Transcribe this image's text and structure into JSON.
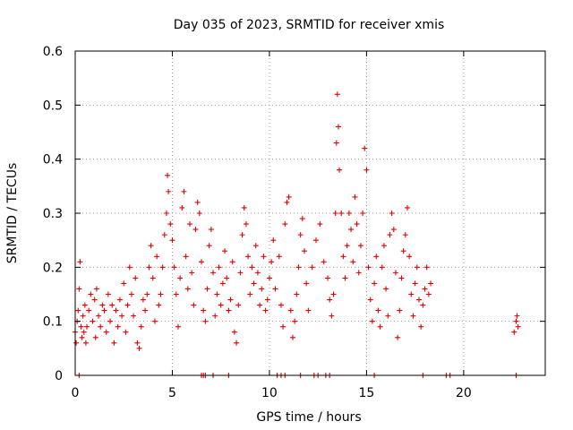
{
  "chart_data": {
    "type": "scatter",
    "title": "Day 035 of 2023, SRMTID for receiver xmis",
    "xlabel": "GPS time / hours",
    "ylabel": "SRMTID / TECUs",
    "xlim": [
      0,
      24.2
    ],
    "ylim": [
      0,
      0.6
    ],
    "xticks": [
      0,
      5,
      10,
      15,
      20
    ],
    "xtick_labels": [
      "0",
      "5",
      "10",
      "15",
      "20"
    ],
    "yticks": [
      0,
      0.1,
      0.2,
      0.3,
      0.4,
      0.5,
      0.6
    ],
    "ytick_labels": [
      "0",
      "0.1",
      "0.2",
      "0.3",
      "0.4",
      "0.5",
      "0.6"
    ],
    "grid": true,
    "marker": "plus",
    "color": "#e00000",
    "series": [
      {
        "name": "SRMTID",
        "points": [
          [
            0.0,
            0.08
          ],
          [
            0.05,
            0.06
          ],
          [
            0.1,
            0.1
          ],
          [
            0.15,
            0.12
          ],
          [
            0.2,
            0.16
          ],
          [
            0.25,
            0.21
          ],
          [
            0.3,
            0.09
          ],
          [
            0.35,
            0.07
          ],
          [
            0.4,
            0.11
          ],
          [
            0.45,
            0.08
          ],
          [
            0.5,
            0.13
          ],
          [
            0.55,
            0.06
          ],
          [
            0.6,
            0.09
          ],
          [
            0.7,
            0.12
          ],
          [
            0.8,
            0.15
          ],
          [
            0.9,
            0.1
          ],
          [
            1.0,
            0.14
          ],
          [
            1.05,
            0.07
          ],
          [
            1.1,
            0.16
          ],
          [
            1.2,
            0.11
          ],
          [
            1.3,
            0.09
          ],
          [
            1.4,
            0.13
          ],
          [
            1.5,
            0.12
          ],
          [
            1.6,
            0.08
          ],
          [
            1.7,
            0.15
          ],
          [
            1.8,
            0.1
          ],
          [
            1.9,
            0.13
          ],
          [
            2.0,
            0.06
          ],
          [
            2.1,
            0.12
          ],
          [
            2.2,
            0.09
          ],
          [
            2.3,
            0.14
          ],
          [
            2.4,
            0.11
          ],
          [
            2.5,
            0.17
          ],
          [
            2.6,
            0.08
          ],
          [
            2.7,
            0.13
          ],
          [
            2.8,
            0.2
          ],
          [
            2.9,
            0.15
          ],
          [
            3.0,
            0.11
          ],
          [
            3.1,
            0.18
          ],
          [
            3.2,
            0.06
          ],
          [
            3.3,
            0.05
          ],
          [
            3.4,
            0.09
          ],
          [
            3.5,
            0.14
          ],
          [
            3.6,
            0.12
          ],
          [
            3.7,
            0.15
          ],
          [
            3.8,
            0.2
          ],
          [
            3.9,
            0.24
          ],
          [
            4.0,
            0.18
          ],
          [
            4.1,
            0.1
          ],
          [
            4.2,
            0.22
          ],
          [
            4.3,
            0.13
          ],
          [
            4.4,
            0.15
          ],
          [
            4.5,
            0.2
          ],
          [
            4.6,
            0.26
          ],
          [
            4.7,
            0.3
          ],
          [
            4.75,
            0.37
          ],
          [
            4.8,
            0.34
          ],
          [
            4.9,
            0.28
          ],
          [
            5.0,
            0.25
          ],
          [
            5.1,
            0.2
          ],
          [
            5.2,
            0.15
          ],
          [
            5.3,
            0.09
          ],
          [
            5.4,
            0.18
          ],
          [
            5.5,
            0.31
          ],
          [
            5.6,
            0.34
          ],
          [
            5.7,
            0.22
          ],
          [
            5.8,
            0.16
          ],
          [
            5.9,
            0.28
          ],
          [
            6.0,
            0.19
          ],
          [
            6.1,
            0.13
          ],
          [
            6.2,
            0.27
          ],
          [
            6.3,
            0.32
          ],
          [
            6.4,
            0.3
          ],
          [
            6.5,
            0.21
          ],
          [
            6.6,
            0.12
          ],
          [
            6.7,
            0.1
          ],
          [
            6.8,
            0.16
          ],
          [
            6.9,
            0.24
          ],
          [
            7.0,
            0.27
          ],
          [
            7.1,
            0.19
          ],
          [
            7.2,
            0.11
          ],
          [
            7.3,
            0.15
          ],
          [
            7.4,
            0.2
          ],
          [
            7.5,
            0.13
          ],
          [
            7.6,
            0.17
          ],
          [
            7.7,
            0.23
          ],
          [
            7.8,
            0.18
          ],
          [
            7.9,
            0.12
          ],
          [
            8.0,
            0.14
          ],
          [
            8.1,
            0.21
          ],
          [
            8.2,
            0.08
          ],
          [
            8.3,
            0.06
          ],
          [
            8.4,
            0.13
          ],
          [
            8.5,
            0.19
          ],
          [
            8.6,
            0.26
          ],
          [
            8.7,
            0.31
          ],
          [
            8.8,
            0.28
          ],
          [
            8.9,
            0.22
          ],
          [
            9.0,
            0.15
          ],
          [
            9.1,
            0.2
          ],
          [
            9.2,
            0.17
          ],
          [
            9.3,
            0.24
          ],
          [
            9.4,
            0.19
          ],
          [
            9.5,
            0.13
          ],
          [
            9.6,
            0.16
          ],
          [
            9.7,
            0.22
          ],
          [
            9.8,
            0.12
          ],
          [
            9.9,
            0.14
          ],
          [
            10.0,
            0.18
          ],
          [
            10.1,
            0.21
          ],
          [
            10.2,
            0.25
          ],
          [
            10.3,
            0.16
          ],
          [
            10.5,
            0.22
          ],
          [
            10.6,
            0.13
          ],
          [
            10.7,
            0.09
          ],
          [
            10.8,
            0.28
          ],
          [
            10.9,
            0.32
          ],
          [
            11.0,
            0.33
          ],
          [
            11.1,
            0.12
          ],
          [
            11.2,
            0.07
          ],
          [
            11.3,
            0.1
          ],
          [
            11.4,
            0.15
          ],
          [
            11.5,
            0.2
          ],
          [
            11.6,
            0.26
          ],
          [
            11.7,
            0.29
          ],
          [
            11.8,
            0.23
          ],
          [
            11.9,
            0.17
          ],
          [
            12.0,
            0.12
          ],
          [
            12.2,
            0.2
          ],
          [
            12.4,
            0.25
          ],
          [
            12.6,
            0.28
          ],
          [
            12.8,
            0.21
          ],
          [
            13.0,
            0.18
          ],
          [
            13.1,
            0.14
          ],
          [
            13.2,
            0.11
          ],
          [
            13.3,
            0.15
          ],
          [
            13.4,
            0.3
          ],
          [
            13.45,
            0.43
          ],
          [
            13.5,
            0.52
          ],
          [
            13.55,
            0.46
          ],
          [
            13.6,
            0.38
          ],
          [
            13.7,
            0.3
          ],
          [
            13.8,
            0.22
          ],
          [
            13.9,
            0.18
          ],
          [
            14.0,
            0.24
          ],
          [
            14.1,
            0.3
          ],
          [
            14.2,
            0.27
          ],
          [
            14.3,
            0.21
          ],
          [
            14.4,
            0.33
          ],
          [
            14.5,
            0.28
          ],
          [
            14.6,
            0.19
          ],
          [
            14.7,
            0.24
          ],
          [
            14.8,
            0.3
          ],
          [
            14.9,
            0.42
          ],
          [
            15.0,
            0.38
          ],
          [
            15.1,
            0.2
          ],
          [
            15.2,
            0.14
          ],
          [
            15.3,
            0.1
          ],
          [
            15.4,
            0.17
          ],
          [
            15.5,
            0.22
          ],
          [
            15.6,
            0.12
          ],
          [
            15.7,
            0.09
          ],
          [
            15.8,
            0.2
          ],
          [
            15.9,
            0.24
          ],
          [
            16.0,
            0.16
          ],
          [
            16.1,
            0.11
          ],
          [
            16.2,
            0.26
          ],
          [
            16.3,
            0.3
          ],
          [
            16.4,
            0.27
          ],
          [
            16.5,
            0.19
          ],
          [
            16.6,
            0.07
          ],
          [
            16.7,
            0.12
          ],
          [
            16.8,
            0.18
          ],
          [
            16.9,
            0.23
          ],
          [
            17.0,
            0.26
          ],
          [
            17.1,
            0.31
          ],
          [
            17.2,
            0.22
          ],
          [
            17.3,
            0.15
          ],
          [
            17.4,
            0.11
          ],
          [
            17.5,
            0.17
          ],
          [
            17.6,
            0.2
          ],
          [
            17.7,
            0.14
          ],
          [
            17.8,
            0.09
          ],
          [
            17.9,
            0.13
          ],
          [
            18.0,
            0.16
          ],
          [
            18.1,
            0.2
          ],
          [
            18.2,
            0.15
          ],
          [
            18.3,
            0.17
          ],
          [
            22.6,
            0.08
          ],
          [
            22.7,
            0.1
          ],
          [
            22.75,
            0.11
          ],
          [
            22.8,
            0.09
          ],
          [
            0.2,
            0.0
          ],
          [
            6.5,
            0.0
          ],
          [
            6.6,
            0.0
          ],
          [
            6.7,
            0.0
          ],
          [
            7.1,
            0.0
          ],
          [
            7.9,
            0.0
          ],
          [
            10.4,
            0.0
          ],
          [
            10.6,
            0.0
          ],
          [
            10.8,
            0.0
          ],
          [
            11.6,
            0.0
          ],
          [
            12.3,
            0.0
          ],
          [
            12.5,
            0.0
          ],
          [
            12.9,
            0.0
          ],
          [
            13.1,
            0.0
          ],
          [
            15.4,
            0.0
          ],
          [
            17.9,
            0.0
          ],
          [
            19.1,
            0.0
          ],
          [
            19.3,
            0.0
          ],
          [
            22.7,
            0.0
          ]
        ]
      }
    ]
  }
}
